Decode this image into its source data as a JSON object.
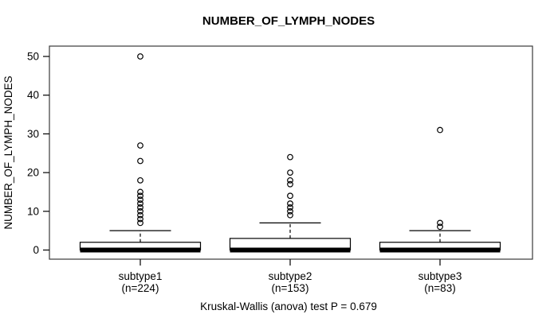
{
  "title": "NUMBER_OF_LYMPH_NODES",
  "caption": "Kruskal-Wallis (anova) test P = 0.679",
  "chart_data": {
    "type": "boxplot",
    "title": "NUMBER_OF_LYMPH_NODES",
    "xlabel": "",
    "ylabel": "NUMBER_OF_LYMPH_NODES",
    "ylim": [
      0,
      50
    ],
    "yticks": [
      0,
      10,
      20,
      30,
      40,
      50
    ],
    "grid": false,
    "legend": "none",
    "footnote": "Kruskal-Wallis (anova) test P = 0.679",
    "box_fill_color": "#ffffff",
    "line_color": "#000000",
    "groups": [
      {
        "label": "subtype1",
        "sublabel": "(n=224)",
        "n": 224,
        "q1": 0,
        "median": 0,
        "q3": 2,
        "whisker_low": 0,
        "whisker_high": 5,
        "outliers": [
          7,
          8,
          9,
          10,
          11,
          12,
          13,
          14,
          15,
          18,
          23,
          27,
          50
        ]
      },
      {
        "label": "subtype2",
        "sublabel": "(n=153)",
        "n": 153,
        "q1": 0,
        "median": 0,
        "q3": 3,
        "whisker_low": 0,
        "whisker_high": 7,
        "outliers": [
          9,
          10,
          11,
          12,
          14,
          17,
          18,
          20,
          24
        ]
      },
      {
        "label": "subtype3",
        "sublabel": "(n=83)",
        "n": 83,
        "q1": 0,
        "median": 0,
        "q3": 2,
        "whisker_low": 0,
        "whisker_high": 5,
        "outliers": [
          6,
          7,
          31
        ]
      }
    ]
  }
}
